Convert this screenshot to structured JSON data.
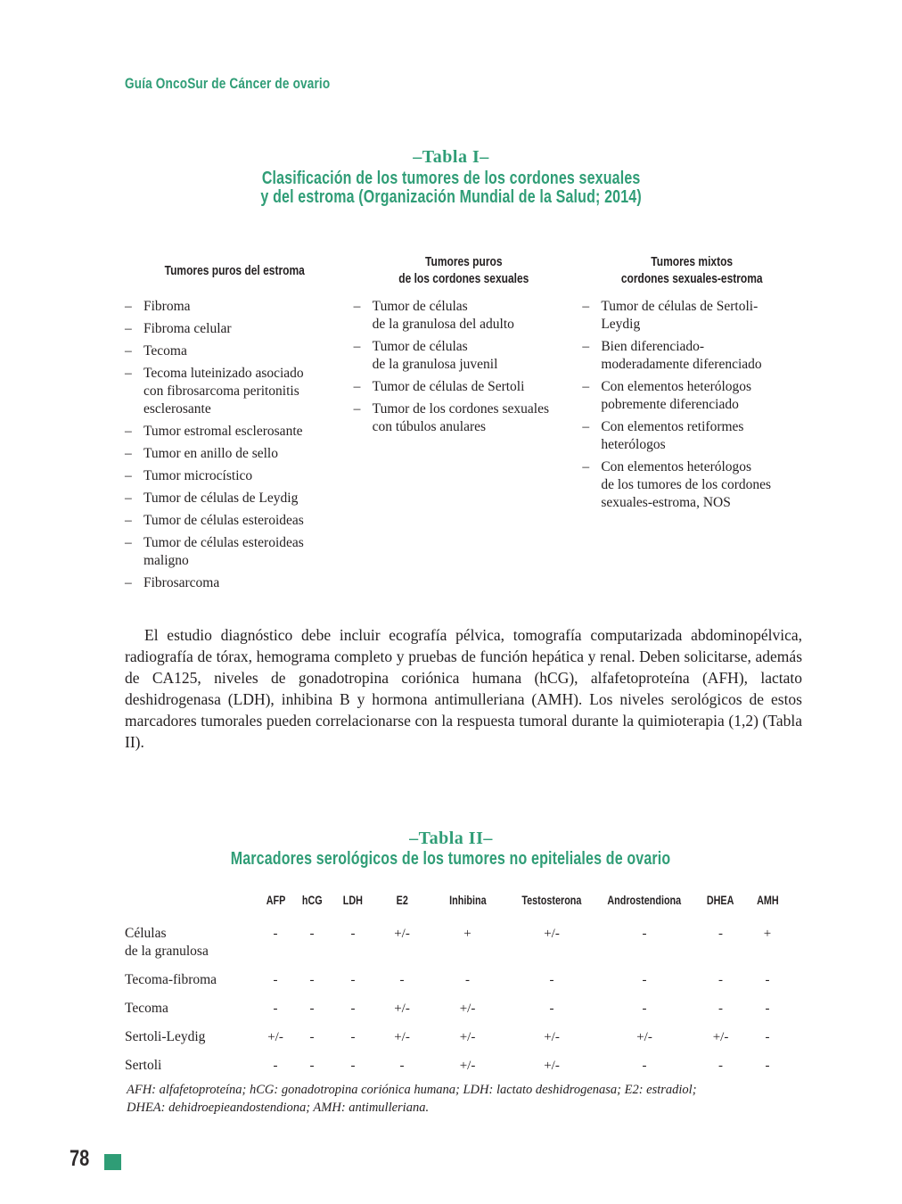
{
  "colors": {
    "accent_green": "#2F9D76",
    "text": "#231F20"
  },
  "header": {
    "title": "Guía OncoSur de Cáncer de ovario"
  },
  "tabla1": {
    "label": "–Tabla I–",
    "title": "Clasificación de los tumores de los cordones sexuales\ny del estroma (Organización Mundial de la Salud; 2014)",
    "bullet": "–",
    "columns": [
      {
        "header": "Tumores puros del estroma",
        "items": [
          "Fibroma",
          "Fibroma celular",
          "Tecoma",
          "Tecoma luteinizado asociado\ncon fibrosarcoma peritonitis\nesclerosante",
          "Tumor estromal esclerosante",
          "Tumor en anillo de sello",
          "Tumor microcístico",
          "Tumor de células de Leydig",
          "Tumor de células esteroideas",
          "Tumor de células esteroideas\nmaligno",
          "Fibrosarcoma"
        ]
      },
      {
        "header": "Tumores puros\nde los cordones sexuales",
        "items": [
          "Tumor de células\nde la granulosa del adulto",
          "Tumor de células\nde la granulosa juvenil",
          "Tumor de células de Sertoli",
          "Tumor de los cordones sexuales\ncon túbulos anulares"
        ]
      },
      {
        "header": "Tumores mixtos\ncordones sexuales-estroma",
        "items": [
          "Tumor de células de Sertoli-\nLeydig",
          "Bien diferenciado-\nmoderadamente diferenciado",
          "Con elementos heterólogos\npobremente diferenciado",
          "Con elementos retiformes\nheterólogos",
          "Con elementos heterólogos\nde los tumores de los cordones\nsexuales-estroma, NOS"
        ]
      }
    ]
  },
  "paragraph": {
    "text": "El estudio diagnóstico debe incluir ecografía pélvica, tomografía computarizada abdominopélvica, radiografía de tórax, hemograma completo y pruebas de función hepática y renal. Deben solicitarse, además de CA125, niveles de gonadotropina coriónica humana (hCG), alfafetoproteína (AFH), lactato deshidrogenasa (LDH), inhibina B y hormona antimulleriana (AMH). Los niveles serológicos de estos marcadores tumorales pueden correlacionarse con la respuesta tumoral durante la quimioterapia (1,2) (Tabla II)."
  },
  "tabla2": {
    "label": "–Tabla II–",
    "title": "Marcadores serológicos de los tumores no epiteliales de ovario",
    "col_headers": [
      "AFP",
      "hCG",
      "LDH",
      "E2",
      "Inhibina",
      "Testosterona",
      "Androstendiona",
      "DHEA",
      "AMH"
    ],
    "rows": [
      {
        "label": "Células\nde la granulosa",
        "values": [
          "-",
          "-",
          "-",
          "+/-",
          "+",
          "+/-",
          "-",
          "-",
          "+"
        ]
      },
      {
        "label": "Tecoma-fibroma",
        "values": [
          "-",
          "-",
          "-",
          "-",
          "-",
          "-",
          "-",
          "-",
          "-"
        ]
      },
      {
        "label": "Tecoma",
        "values": [
          "-",
          "-",
          "-",
          "+/-",
          "+/-",
          "-",
          "-",
          "-",
          "-"
        ]
      },
      {
        "label": "Sertoli-Leydig",
        "values": [
          "+/-",
          "-",
          "-",
          "+/-",
          "+/-",
          "+/-",
          "+/-",
          "+/-",
          "-"
        ]
      },
      {
        "label": "Sertoli",
        "values": [
          "-",
          "-",
          "-",
          "-",
          "+/-",
          "+/-",
          "-",
          "-",
          "-"
        ]
      }
    ],
    "footnote": "AFH: alfafetoproteína; hCG: gonadotropina coriónica humana; LDH: lactato deshidrogenasa; E2: estradiol;\nDHEA: dehidroepieandostendiona; AMH: antimulleriana."
  },
  "footer": {
    "page_number": "78"
  }
}
